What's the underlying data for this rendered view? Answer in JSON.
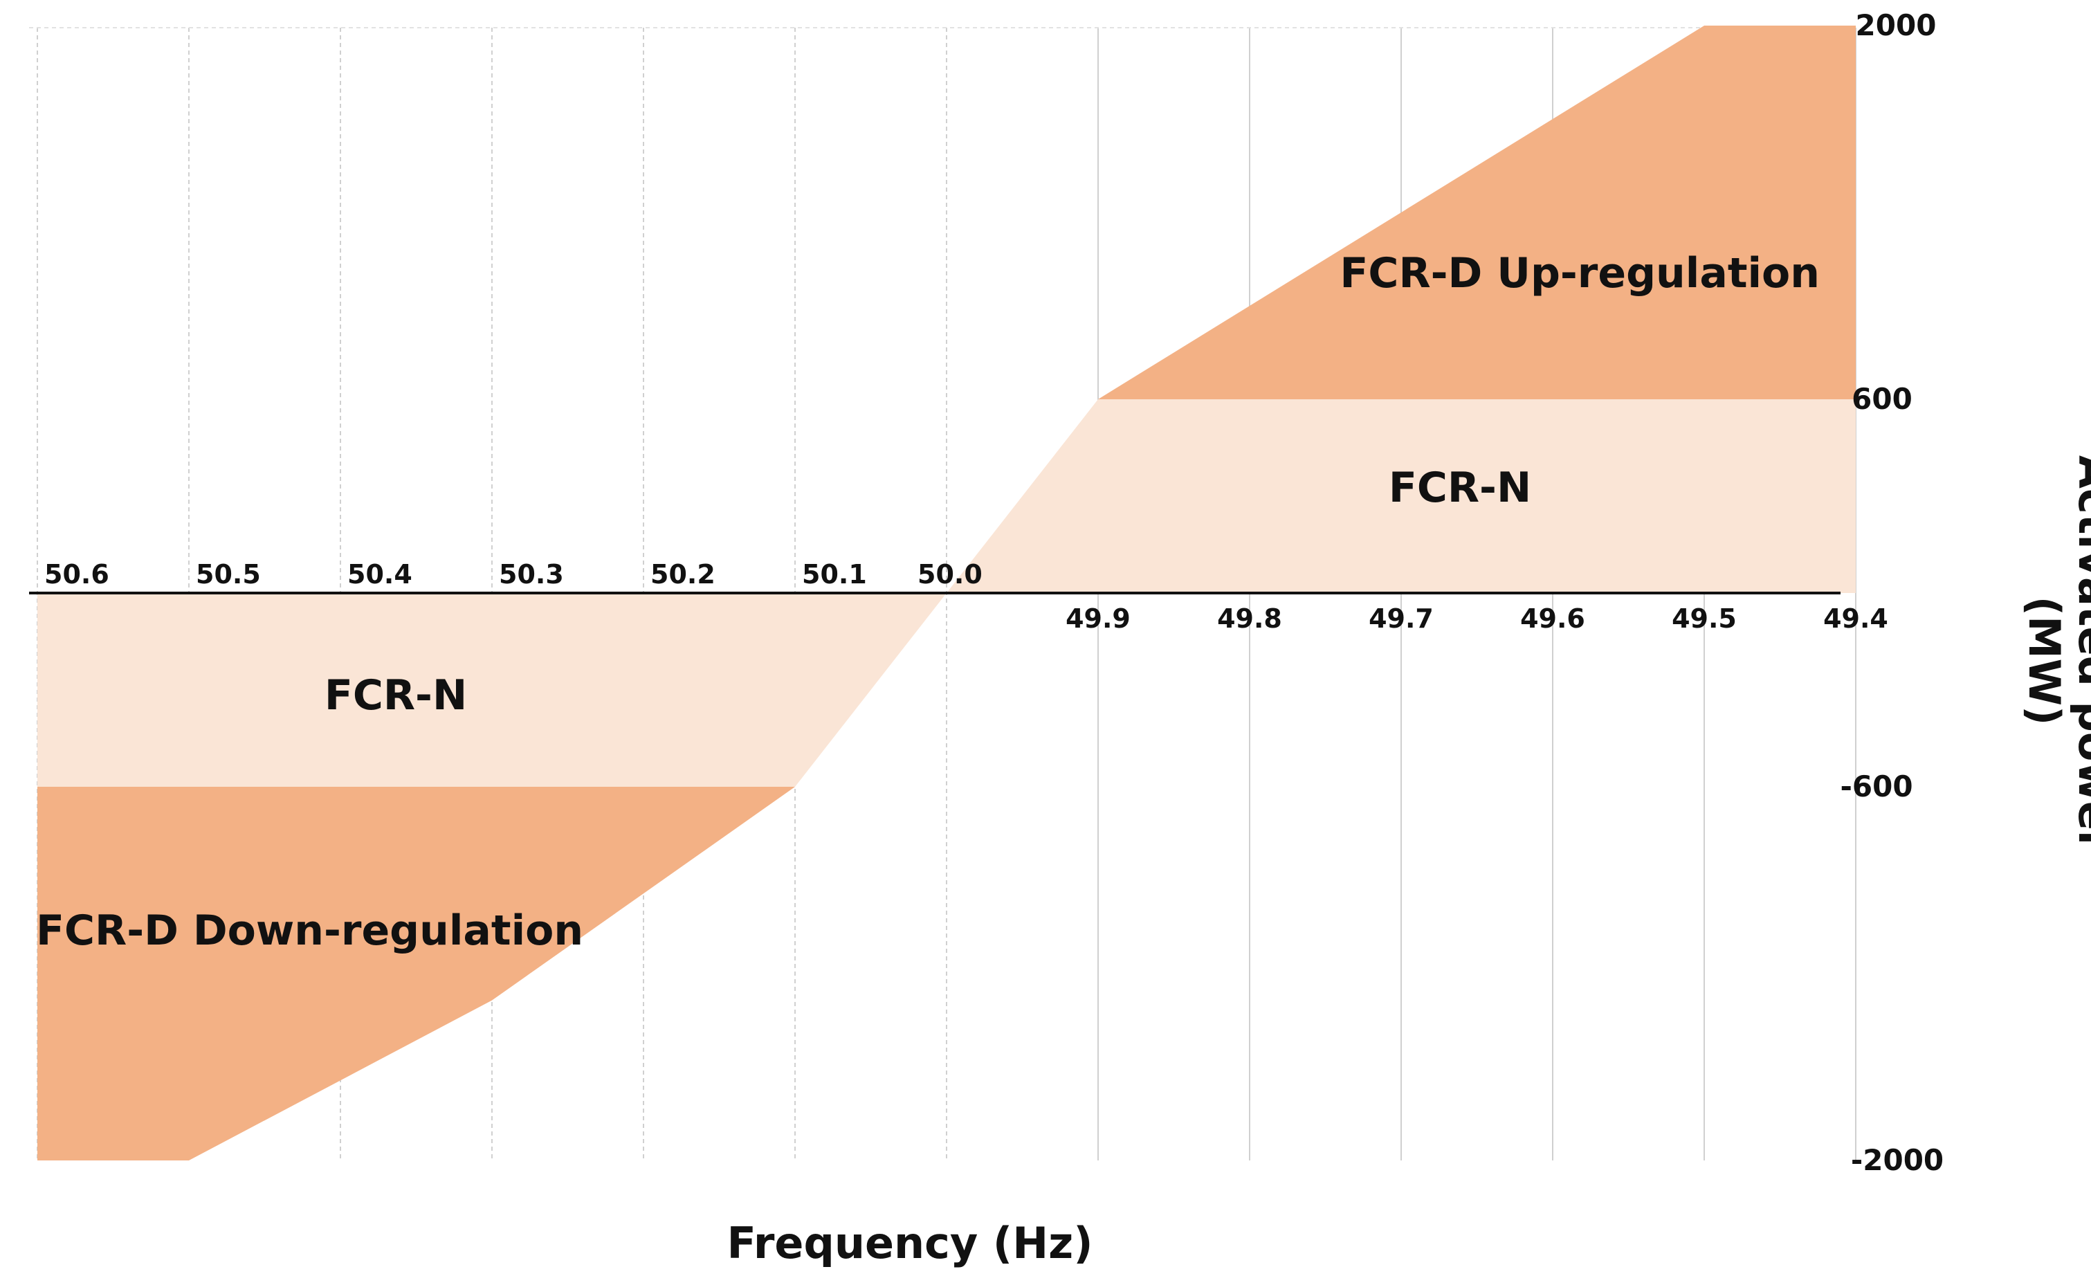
{
  "chart_data": {
    "type": "area",
    "title": "",
    "xlabel": "Frequency (Hz)",
    "ylabel": "Activated power (MW)",
    "x_ticks_left": [
      "50.6",
      "50.5",
      "50.4",
      "50.3",
      "50.2",
      "50.1",
      "50.0"
    ],
    "x_ticks_right": [
      "49.9",
      "49.8",
      "49.7",
      "49.6",
      "49.5",
      "49.4"
    ],
    "y_ticks": [
      "2000",
      "600",
      "-600",
      "-2000"
    ],
    "grid": true,
    "regions": [
      {
        "name": "FCR-N",
        "label": "FCR-N",
        "color": "#fae5d6",
        "points": [
          [
            50.6,
            0
          ],
          [
            50.1,
            0
          ],
          [
            50.0,
            0
          ],
          [
            50.1,
            -600
          ],
          [
            50.6,
            -600
          ]
        ]
      },
      {
        "name": "FCR-N",
        "label": "FCR-N",
        "color": "#fae5d6",
        "points": [
          [
            50.0,
            0
          ],
          [
            49.4,
            0
          ],
          [
            49.4,
            600
          ],
          [
            49.9,
            600
          ]
        ]
      },
      {
        "name": "FCR-D Up-regulation",
        "label": "FCR-D Up-regulation",
        "color": "#f3b185",
        "points": [
          [
            49.9,
            600
          ],
          [
            49.4,
            600
          ],
          [
            49.4,
            2000
          ],
          [
            49.5,
            2000
          ]
        ]
      },
      {
        "name": "FCR-D Down-regulation",
        "label": "FCR-D Down-regulation",
        "color": "#f3b185",
        "points": [
          [
            50.6,
            -600
          ],
          [
            50.1,
            -600
          ],
          [
            50.3,
            -1400
          ],
          [
            50.5,
            -2000
          ],
          [
            50.6,
            -2000
          ]
        ]
      }
    ]
  }
}
